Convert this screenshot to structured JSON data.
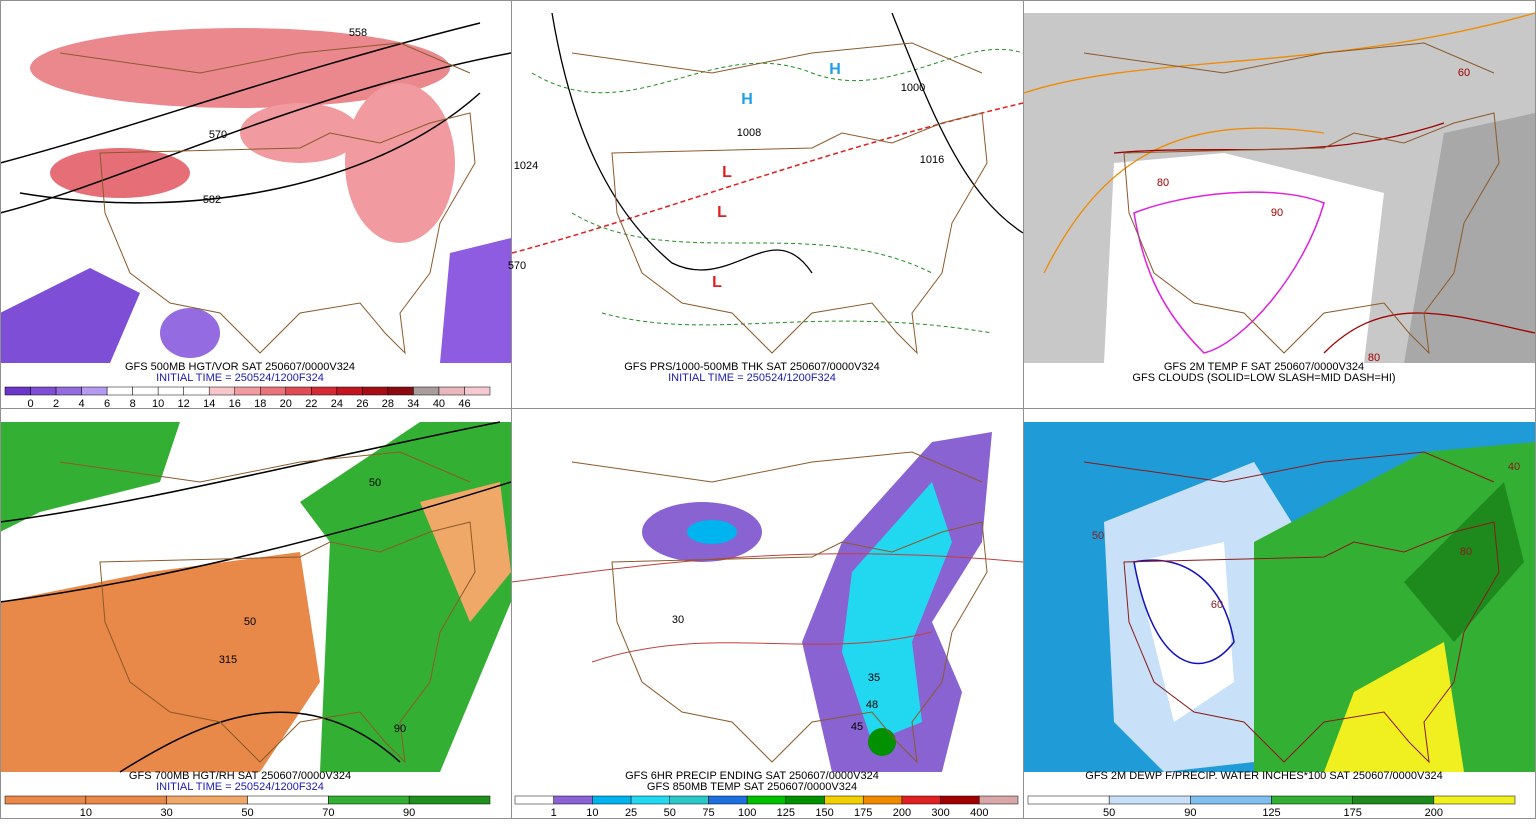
{
  "panels": [
    {
      "captions": [
        "GFS 500MB HGT/VOR SAT 250607/0000V324",
        "INITIAL TIME = 250524/1200F324"
      ],
      "caption_colors": [
        "#000000",
        "#1a1ab4"
      ],
      "map_labels": [
        "558",
        "570",
        "582"
      ],
      "colorbar": {
        "labels": [
          "0",
          "2",
          "4",
          "6",
          "8",
          "10",
          "12",
          "14",
          "16",
          "18",
          "20",
          "22",
          "24",
          "26",
          "28",
          "34",
          "40",
          "46"
        ],
        "colors": [
          "#6a35c9",
          "#7e4fd6",
          "#946be0",
          "#b49af0",
          "#ffffff",
          "#ffffff",
          "#ffffff",
          "#ffffff",
          "#f7c6c8",
          "#f19aa0",
          "#e8737a",
          "#e04b55",
          "#d42a35",
          "#c21520",
          "#a80d16",
          "#8b0a10",
          "#a89c9c",
          "#e8b7bb",
          "#f5c9d0"
        ]
      }
    },
    {
      "captions": [
        "GFS PRS/1000-500MB THK SAT 250607/0000V324",
        "INITIAL TIME = 250524/1200F324"
      ],
      "caption_colors": [
        "#000000",
        "#1a1ab4"
      ],
      "map_labels": [
        "1000",
        "1008",
        "1016",
        "1024",
        "570",
        "H",
        "H",
        "L",
        "L",
        "L"
      ]
    },
    {
      "captions": [
        "GFS 2M TEMP F SAT 250607/0000V324",
        "GFS CLOUDS (SOLID=LOW SLASH=MID DASH=HI)"
      ],
      "caption_colors": [
        "#000000",
        "#000000"
      ],
      "map_labels": [
        "80",
        "90",
        "80",
        "60"
      ]
    },
    {
      "captions": [
        "GFS 700MB HGT/RH SAT 250607/0000V324",
        "INITIAL TIME = 250524/1200F324"
      ],
      "caption_colors": [
        "#000000",
        "#1a1ab4"
      ],
      "map_labels": [
        "50",
        "315",
        "90",
        "50"
      ],
      "colorbar": {
        "labels": [
          "10",
          "30",
          "50",
          "70",
          "90"
        ],
        "colors": [
          "#e8894a",
          "#e8894a",
          "#f0a868",
          "#ffffff",
          "#33b033",
          "#1f8f1f"
        ]
      }
    },
    {
      "captions": [
        "GFS 6HR PRECIP ENDING SAT 250607/0000V324",
        "GFS 850MB TEMP SAT 250607/0000V324"
      ],
      "caption_colors": [
        "#000000",
        "#000000"
      ],
      "map_labels": [
        "35",
        "48",
        "30",
        "45"
      ],
      "colorbar": {
        "labels": [
          "1",
          "10",
          "25",
          "50",
          "75",
          "100",
          "125",
          "150",
          "175",
          "200",
          "300",
          "400"
        ],
        "colors": [
          "#ffffff",
          "#8a63d2",
          "#00b4f0",
          "#22d7f0",
          "#2ac8c8",
          "#1e6fe0",
          "#00c000",
          "#009000",
          "#f0d000",
          "#f08a00",
          "#e02020",
          "#a00000",
          "#d8a8a8"
        ]
      }
    },
    {
      "captions": [
        "GFS 2M DEWP F/PRECIP. WATER INCHES*100 SAT 250607/0000V324"
      ],
      "caption_colors": [
        "#000000"
      ],
      "map_labels": [
        "50",
        "60",
        "80",
        "40"
      ],
      "colorbar": {
        "labels": [
          "50",
          "90",
          "125",
          "175",
          "200"
        ],
        "colors": [
          "#ffffff",
          "#c8e0f8",
          "#80c0f0",
          "#33b033",
          "#1e8a1e",
          "#f0f020"
        ]
      }
    }
  ]
}
